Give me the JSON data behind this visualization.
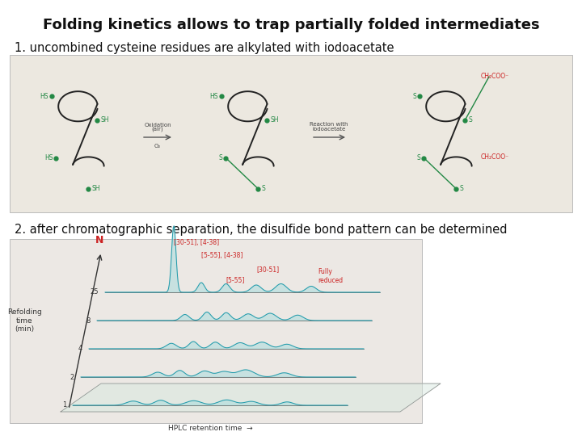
{
  "title": "Folding kinetics allows to trap partially folded intermediates",
  "subtitle1": "1. uncombined cysteine residues are alkylated with iodoacetate",
  "subtitle2": "2. after chromatographic separation, the disulfide bond pattern can be determined",
  "bg_color": "#ffffff",
  "title_fontsize": 13,
  "subtitle_fontsize": 10.5,
  "fig_width": 7.2,
  "fig_height": 5.4,
  "top_panel_bg": "#f0f0e8",
  "bottom_panel_bg": "#f0f0f0",
  "green_color": "#228844",
  "red_color": "#cc2222",
  "dark_color": "#222222",
  "arrow_color": "#555555"
}
